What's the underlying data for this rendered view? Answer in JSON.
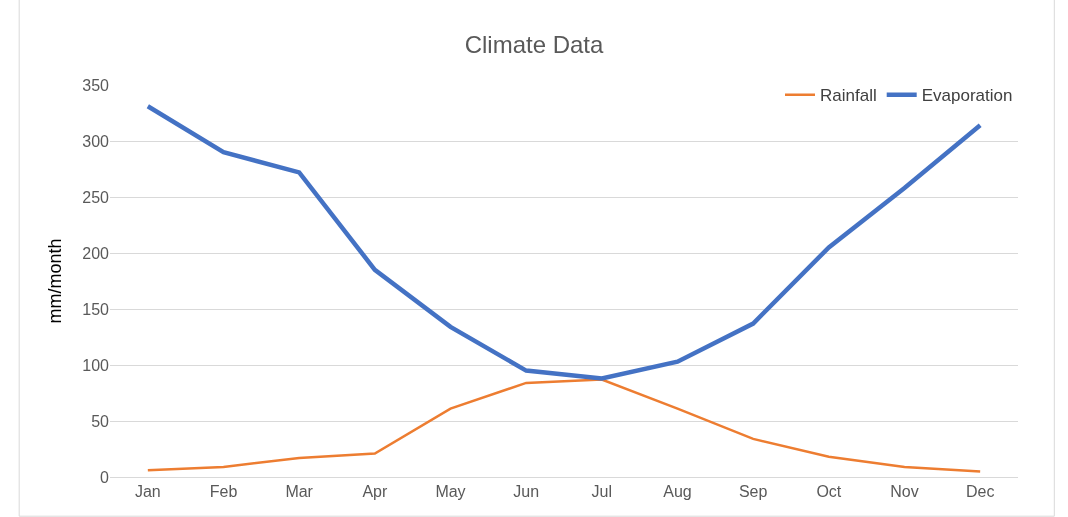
{
  "chart_data": {
    "type": "line",
    "title": "Climate Data",
    "ylabel": "mm/month",
    "categories": [
      "Jan",
      "Feb",
      "Mar",
      "Apr",
      "May",
      "Jun",
      "Jul",
      "Aug",
      "Sep",
      "Oct",
      "Nov",
      "Dec"
    ],
    "series": [
      {
        "name": "Rainfall",
        "color": "#ed7d31",
        "values": [
          6,
          9,
          17,
          21,
          61,
          84,
          87,
          61,
          34,
          18,
          9,
          5
        ]
      },
      {
        "name": "Evaporation",
        "color": "#4472c4",
        "values": [
          331,
          290,
          272,
          185,
          134,
          95,
          88,
          103,
          137,
          205,
          258,
          314
        ]
      }
    ],
    "ylim": [
      0,
      350
    ],
    "yticks": [
      0,
      50,
      100,
      150,
      200,
      250,
      300,
      350
    ],
    "grid": "y",
    "legend": "top right",
    "marker": "none",
    "line_style": "solid"
  }
}
